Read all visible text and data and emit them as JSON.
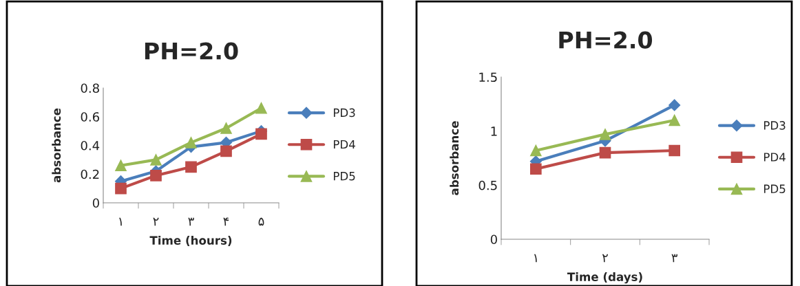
{
  "chart_data": [
    {
      "type": "line",
      "title": "PH=2.0",
      "xlabel": "Time (hours)",
      "ylabel": "absorbance",
      "categories": [
        "۱",
        "۲",
        "۳",
        "۴",
        "۵"
      ],
      "ylim": [
        0,
        0.8
      ],
      "yticks": [
        0,
        0.2,
        0.4,
        0.6,
        0.8
      ],
      "grid": false,
      "legend": "right",
      "series": [
        {
          "name": "PD3",
          "color": "#4a7ebb",
          "marker": "diamond",
          "values": [
            0.15,
            0.22,
            0.39,
            0.42,
            0.5
          ]
        },
        {
          "name": "PD4",
          "color": "#be4b48",
          "marker": "square",
          "values": [
            0.1,
            0.19,
            0.25,
            0.36,
            0.48
          ]
        },
        {
          "name": "PD5",
          "color": "#98b954",
          "marker": "triangle",
          "values": [
            0.26,
            0.3,
            0.42,
            0.52,
            0.66
          ]
        }
      ]
    },
    {
      "type": "line",
      "title": "PH=2.0",
      "xlabel": "Time (days)",
      "ylabel": "absorbance",
      "categories": [
        "۱",
        "۲",
        "۳"
      ],
      "ylim": [
        0,
        1.5
      ],
      "yticks": [
        0,
        0.5,
        1,
        1.5
      ],
      "grid": false,
      "legend": "right",
      "series": [
        {
          "name": "PD3",
          "color": "#4a7ebb",
          "marker": "diamond",
          "values": [
            0.72,
            0.91,
            1.24
          ]
        },
        {
          "name": "PD4",
          "color": "#be4b48",
          "marker": "square",
          "values": [
            0.65,
            0.8,
            0.82
          ]
        },
        {
          "name": "PD5",
          "color": "#98b954",
          "marker": "triangle",
          "values": [
            0.82,
            0.97,
            1.1
          ]
        }
      ]
    }
  ]
}
